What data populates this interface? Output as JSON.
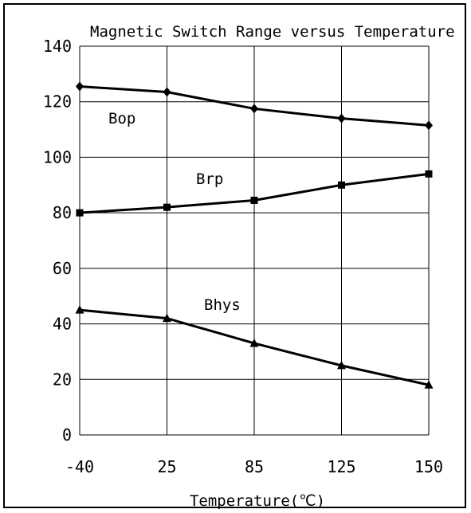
{
  "chart_data": {
    "type": "line",
    "title": "Magnetic Switch Range versus Temperature",
    "xlabel": "Temperature(℃)",
    "ylabel": "",
    "x": [
      "-40",
      "25",
      "85",
      "125",
      "150"
    ],
    "ylim": [
      0,
      140
    ],
    "yticks": [
      "0",
      "20",
      "40",
      "60",
      "80",
      "100",
      "120",
      "140"
    ],
    "grid": true,
    "legend": "none",
    "series": [
      {
        "name": "Bop",
        "marker": "diamond",
        "values": [
          125.5,
          123.5,
          117.5,
          114,
          111.5
        ]
      },
      {
        "name": "Brp",
        "marker": "square",
        "values": [
          80,
          82,
          84.5,
          90,
          94
        ]
      },
      {
        "name": "Bhys",
        "marker": "triangle",
        "values": [
          45,
          42,
          33,
          25,
          18
        ]
      }
    ]
  }
}
